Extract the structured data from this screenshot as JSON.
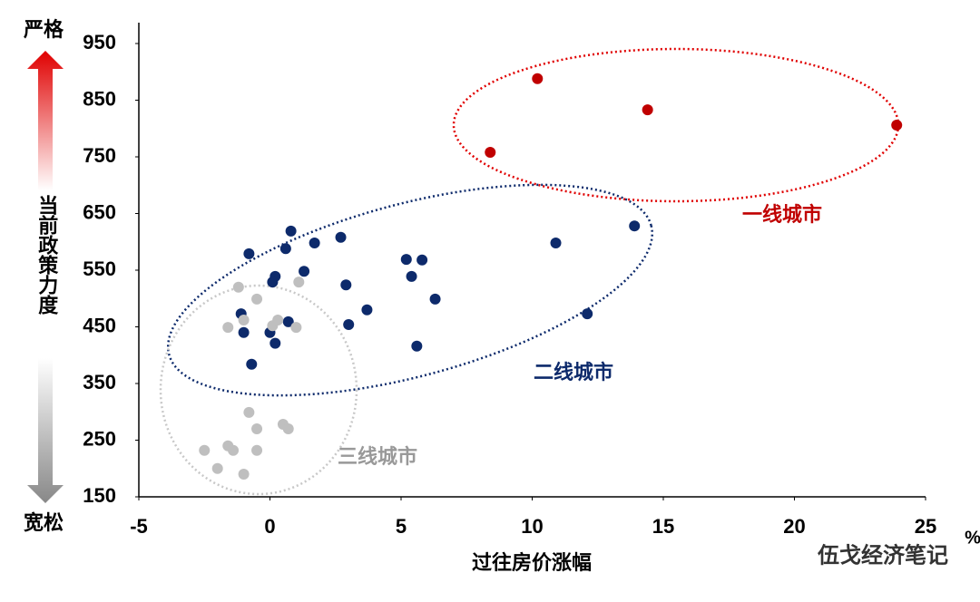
{
  "chart_data": {
    "type": "scatter",
    "x_label": "过往房价涨幅",
    "x_unit": "%",
    "y_label": "当前政策力度",
    "y_top": "严格",
    "y_bottom": "宽松",
    "xlim": [
      -5,
      25
    ],
    "xticks": [
      -5,
      0,
      5,
      10,
      15,
      20,
      25
    ],
    "ylim": [
      150,
      950
    ],
    "yticks": [
      150,
      250,
      350,
      450,
      550,
      650,
      750,
      850,
      950
    ],
    "series": [
      {
        "name": "一线城市",
        "color": "#c00000",
        "x": [
          8.4,
          10.2,
          14.4,
          23.9
        ],
        "values": [
          758,
          888,
          833,
          806
        ]
      },
      {
        "name": "二线城市",
        "color": "#0d2a6b",
        "x": [
          -0.8,
          0.8,
          0.6,
          1.7,
          2.7,
          0.2,
          1.3,
          0.1,
          2.9,
          -1.1,
          -1.0,
          0.7,
          0.0,
          0.2,
          -0.7,
          3.0,
          3.7,
          5.2,
          5.8,
          5.4,
          6.3,
          5.6,
          10.9,
          12.1,
          13.9
        ],
        "values": [
          579,
          619,
          588,
          598,
          608,
          539,
          548,
          529,
          524,
          473,
          440,
          459,
          440,
          421,
          384,
          454,
          480,
          569,
          568,
          539,
          499,
          416,
          598,
          473,
          628
        ]
      },
      {
        "name": "三线城市",
        "color": "#bfbfbf",
        "x": [
          -1.2,
          -0.5,
          1.1,
          -1.6,
          -1.0,
          0.1,
          0.3,
          1.0,
          -0.8,
          -0.5,
          0.5,
          0.7,
          -2.5,
          -1.6,
          -1.4,
          -0.5,
          -2.0,
          -1.0
        ],
        "values": [
          520,
          499,
          529,
          449,
          462,
          452,
          462,
          449,
          299,
          270,
          278,
          270,
          232,
          240,
          232,
          232,
          200,
          190
        ]
      }
    ]
  },
  "watermark": "伍戈经济笔记"
}
